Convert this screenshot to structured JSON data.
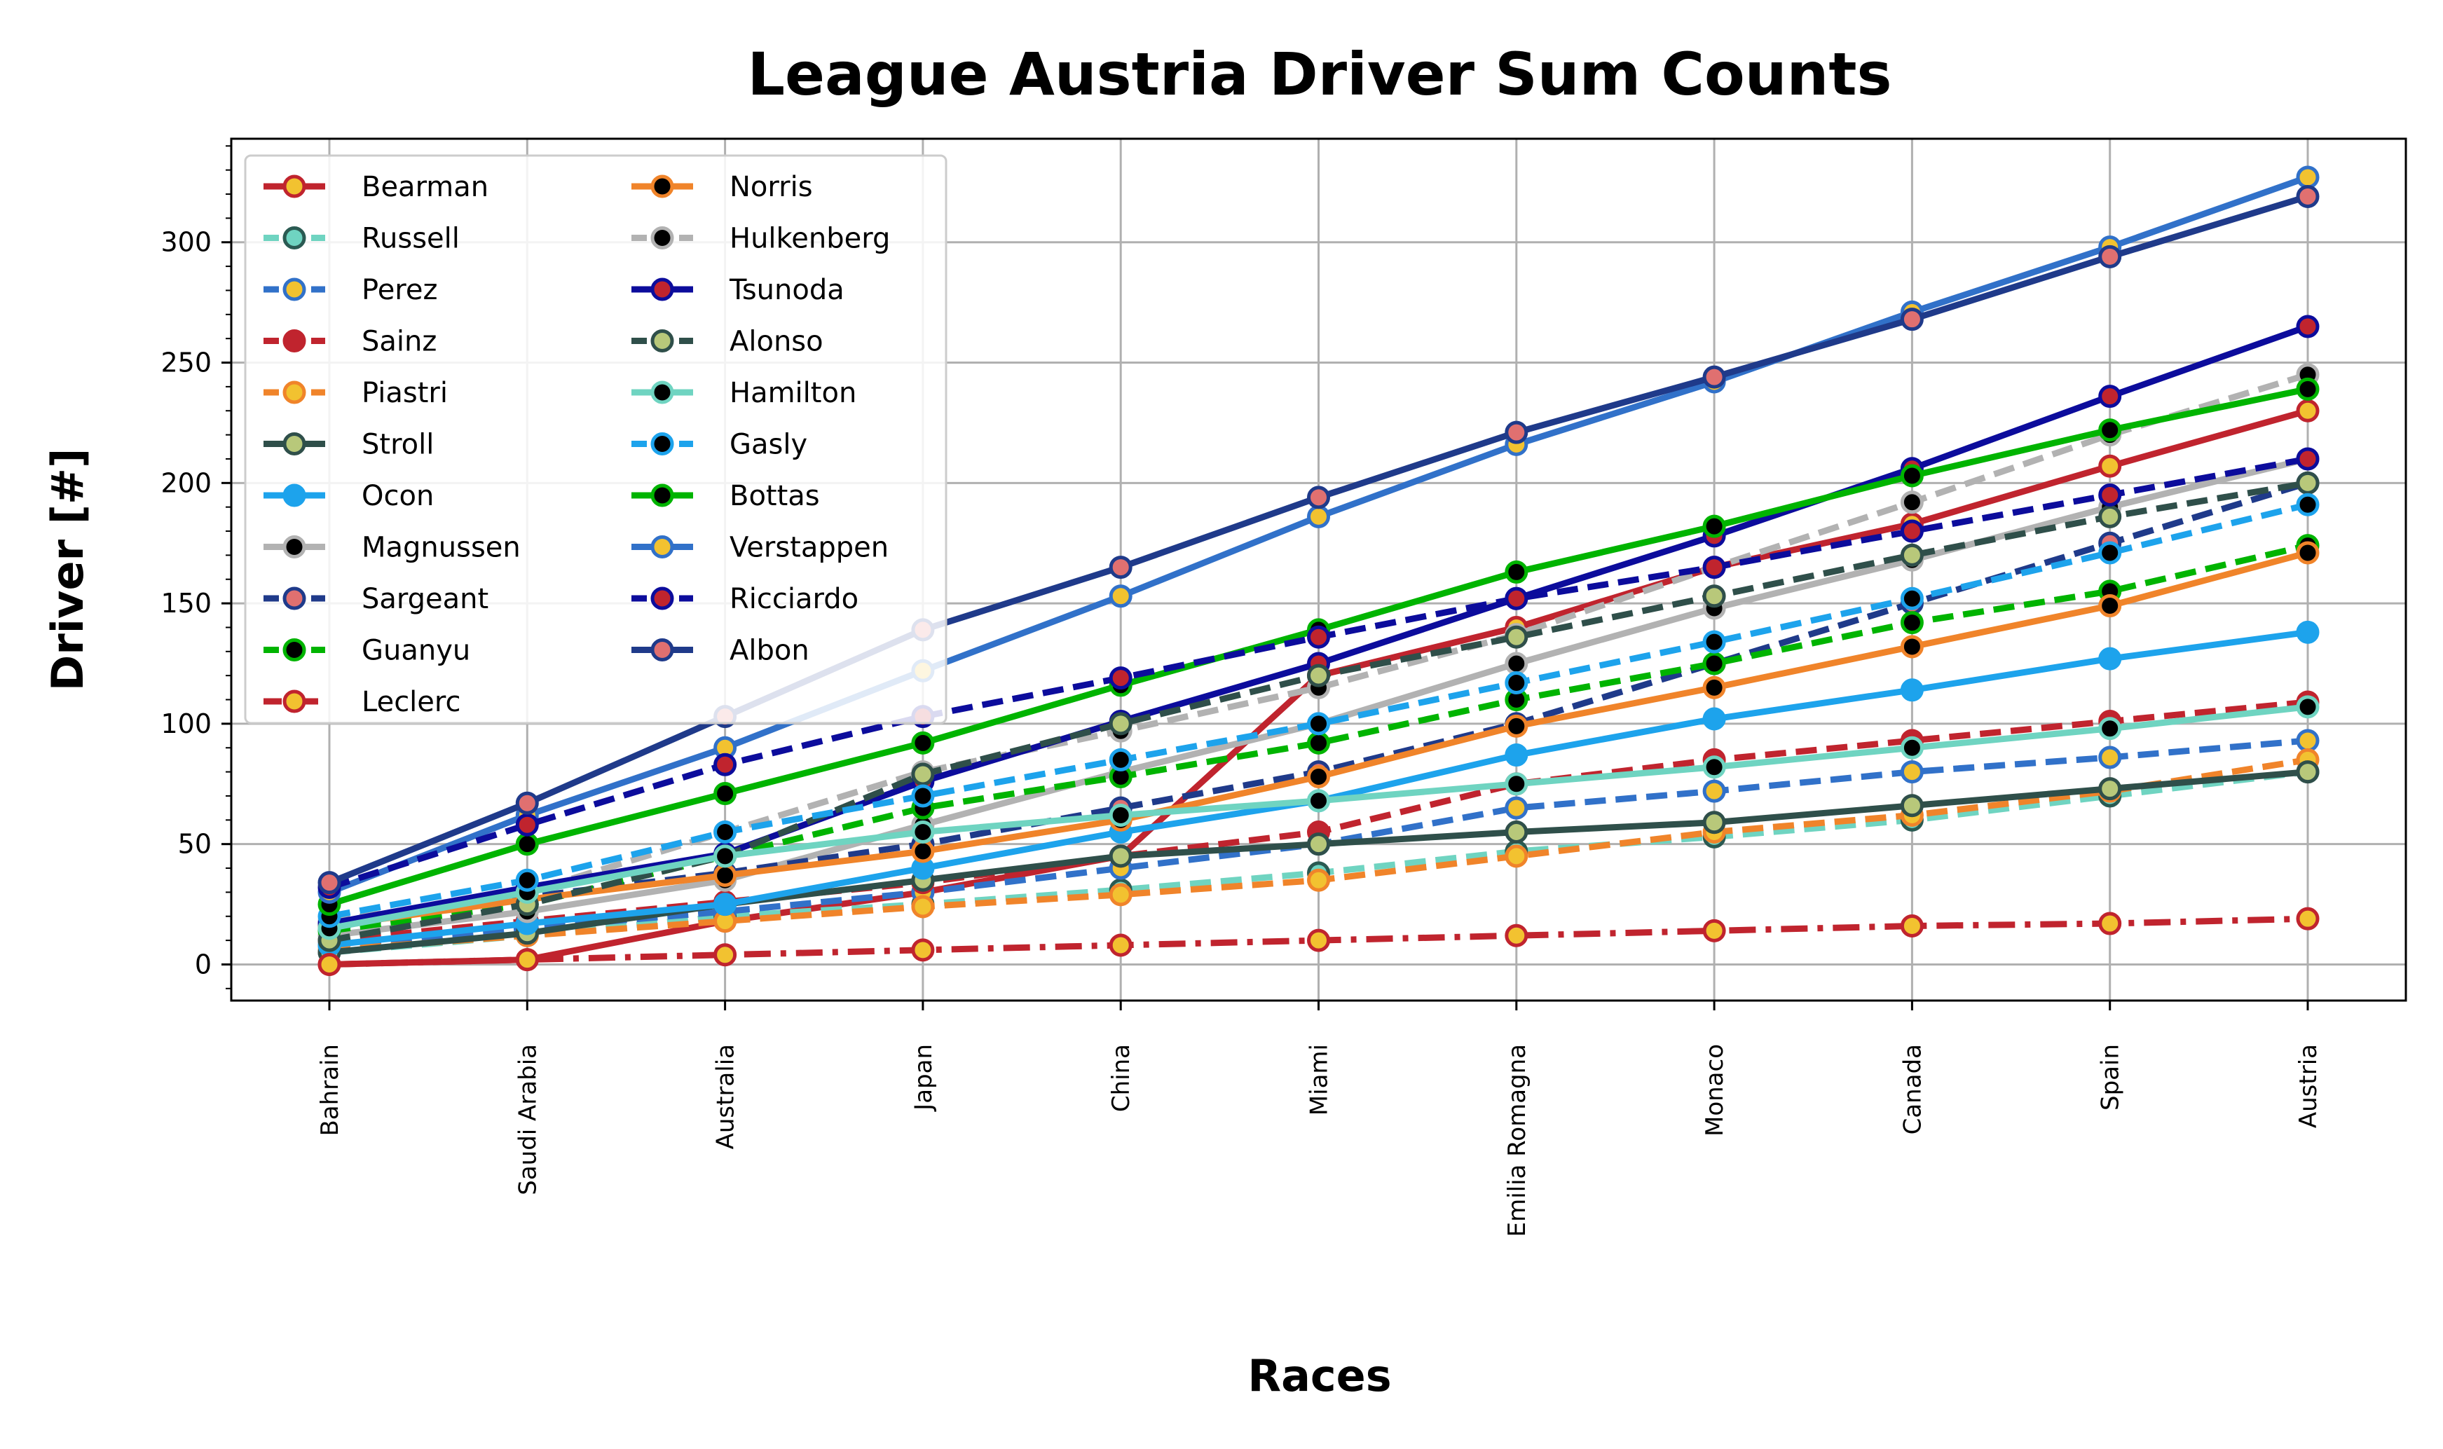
{
  "chart_data": {
    "type": "line",
    "title": "League Austria Driver Sum Counts",
    "xlabel": "Races",
    "ylabel": "Driver [#]",
    "categories": [
      "Bahrain",
      "Saudi Arabia",
      "Australia",
      "Japan",
      "China",
      "Miami",
      "Emilia Romagna",
      "Monaco",
      "Canada",
      "Spain",
      "Austria"
    ],
    "ylim": [
      -15,
      343
    ],
    "yticks": [
      0,
      50,
      100,
      150,
      200,
      250,
      300
    ],
    "grid": true,
    "legend_position": "top-left",
    "series": [
      {
        "name": "Bearman",
        "color": "#c0242e",
        "dash": "solid",
        "marker_fill": "#f2c230",
        "marker_edge": "#c0242e",
        "values": [
          0,
          2,
          18,
          30,
          45,
          120,
          140,
          165,
          183,
          207,
          230
        ]
      },
      {
        "name": "Russell",
        "color": "#6fd4c1",
        "dash": "dashed",
        "marker_fill": "#6fd4c1",
        "marker_edge": "#2a5a52",
        "values": [
          5,
          12,
          20,
          25,
          31,
          38,
          47,
          53,
          60,
          70,
          80
        ]
      },
      {
        "name": "Perez",
        "color": "#3171c9",
        "dash": "dashed",
        "marker_fill": "#f2c230",
        "marker_edge": "#3171c9",
        "values": [
          8,
          15,
          22,
          30,
          40,
          50,
          65,
          72,
          80,
          86,
          93
        ]
      },
      {
        "name": "Sainz",
        "color": "#c0242e",
        "dash": "dashed",
        "marker_fill": "#c0242e",
        "marker_edge": "#c0242e",
        "values": [
          10,
          18,
          26,
          34,
          45,
          55,
          75,
          85,
          93,
          101,
          109
        ]
      },
      {
        "name": "Piastri",
        "color": "#f0842a",
        "dash": "dashed",
        "marker_fill": "#f2c230",
        "marker_edge": "#f0842a",
        "values": [
          6,
          12,
          18,
          24,
          29,
          35,
          45,
          55,
          62,
          72,
          85
        ]
      },
      {
        "name": "Stroll",
        "color": "#2f4f4a",
        "dash": "solid",
        "marker_fill": "#b8c87a",
        "marker_edge": "#2f4f4a",
        "values": [
          5,
          13,
          25,
          35,
          45,
          50,
          55,
          59,
          66,
          73,
          80
        ]
      },
      {
        "name": "Ocon",
        "color": "#1da3ec",
        "dash": "solid",
        "marker_fill": "#1da3ec",
        "marker_edge": "#1da3ec",
        "values": [
          8,
          17,
          25,
          40,
          55,
          68,
          87,
          102,
          114,
          127,
          138
        ]
      },
      {
        "name": "Magnussen",
        "color": "#b2b2b2",
        "dash": "solid",
        "marker_fill": "#000000",
        "marker_edge": "#b2b2b2",
        "values": [
          12,
          22,
          35,
          58,
          80,
          100,
          125,
          148,
          168,
          190,
          210
        ]
      },
      {
        "name": "Sargeant",
        "color": "#1f3a8a",
        "dash": "dashed",
        "marker_fill": "#e07070",
        "marker_edge": "#1f3a8a",
        "values": [
          15,
          28,
          38,
          50,
          65,
          80,
          100,
          125,
          150,
          175,
          200
        ]
      },
      {
        "name": "Guanyu",
        "color": "#00b400",
        "dash": "dashed",
        "marker_fill": "#000000",
        "marker_edge": "#00b400",
        "values": [
          14,
          25,
          45,
          65,
          78,
          92,
          110,
          125,
          142,
          155,
          174
        ]
      },
      {
        "name": "Leclerc",
        "color": "#c0242e",
        "dash": "dashdot",
        "marker_fill": "#f2c230",
        "marker_edge": "#c0242e",
        "values": [
          0,
          2,
          4,
          6,
          8,
          10,
          12,
          14,
          16,
          17,
          19
        ]
      },
      {
        "name": "Norris",
        "color": "#f0842a",
        "dash": "solid",
        "marker_fill": "#000000",
        "marker_edge": "#f0842a",
        "values": [
          16,
          27,
          37,
          47,
          60,
          78,
          99,
          115,
          132,
          149,
          171
        ]
      },
      {
        "name": "Hulkenberg",
        "color": "#b2b2b2",
        "dash": "dashed",
        "marker_fill": "#000000",
        "marker_edge": "#b2b2b2",
        "values": [
          18,
          30,
          55,
          80,
          97,
          115,
          137,
          165,
          192,
          220,
          245
        ]
      },
      {
        "name": "Tsunoda",
        "color": "#0c0c9c",
        "dash": "solid",
        "marker_fill": "#c0242e",
        "marker_edge": "#0c0c9c",
        "values": [
          17,
          32,
          46,
          76,
          101,
          125,
          152,
          178,
          206,
          236,
          265
        ]
      },
      {
        "name": "Alonso",
        "color": "#2f4f4a",
        "dash": "dashed",
        "marker_fill": "#b8c87a",
        "marker_edge": "#2f4f4a",
        "values": [
          10,
          25,
          45,
          79,
          100,
          120,
          136,
          153,
          170,
          186,
          200
        ]
      },
      {
        "name": "Hamilton",
        "color": "#6fd4c1",
        "dash": "solid",
        "marker_fill": "#000000",
        "marker_edge": "#6fd4c1",
        "values": [
          15,
          30,
          45,
          55,
          62,
          68,
          75,
          82,
          90,
          98,
          107
        ]
      },
      {
        "name": "Gasly",
        "color": "#1da3ec",
        "dash": "dashed",
        "marker_fill": "#000000",
        "marker_edge": "#1da3ec",
        "values": [
          20,
          35,
          55,
          70,
          85,
          100,
          117,
          134,
          152,
          171,
          191
        ]
      },
      {
        "name": "Bottas",
        "color": "#00b400",
        "dash": "solid",
        "marker_fill": "#000000",
        "marker_edge": "#00b400",
        "values": [
          25,
          50,
          71,
          92,
          116,
          139,
          163,
          182,
          203,
          222,
          239
        ]
      },
      {
        "name": "Verstappen",
        "color": "#3171c9",
        "dash": "solid",
        "marker_fill": "#f2c230",
        "marker_edge": "#3171c9",
        "values": [
          30,
          62,
          90,
          122,
          153,
          186,
          216,
          242,
          271,
          298,
          327
        ]
      },
      {
        "name": "Ricciardo",
        "color": "#0c0c9c",
        "dash": "dashed",
        "marker_fill": "#c0242e",
        "marker_edge": "#0c0c9c",
        "values": [
          32,
          58,
          83,
          103,
          119,
          136,
          152,
          165,
          180,
          195,
          210
        ]
      },
      {
        "name": "Albon",
        "color": "#1f3a8a",
        "dash": "solid",
        "marker_fill": "#e07070",
        "marker_edge": "#1f3a8a",
        "values": [
          34,
          67,
          103,
          139,
          165,
          194,
          221,
          244,
          268,
          294,
          319
        ]
      }
    ]
  }
}
